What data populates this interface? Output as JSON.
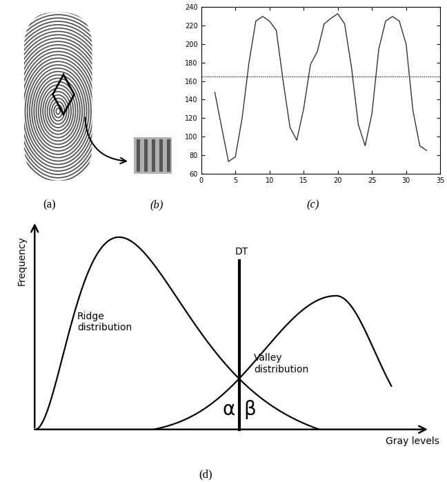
{
  "panel_labels": [
    "(a)",
    "(b)",
    "(c)",
    "(d)"
  ],
  "chart_data": {
    "type": "line",
    "color": "#333333",
    "x": [
      2,
      3,
      4,
      5,
      6,
      7,
      8,
      9,
      10,
      11,
      12,
      13,
      14,
      15,
      16,
      17,
      18,
      19,
      20,
      21,
      22,
      23,
      24,
      25,
      26,
      27,
      28,
      29,
      30,
      31,
      32,
      33
    ],
    "values": [
      148,
      110,
      73,
      78,
      120,
      180,
      225,
      230,
      225,
      215,
      160,
      110,
      96,
      130,
      178,
      192,
      222,
      228,
      233,
      222,
      175,
      113,
      90,
      125,
      195,
      225,
      230,
      225,
      200,
      128,
      90,
      85
    ],
    "threshold": 165,
    "xlim": [
      0,
      35
    ],
    "xticks": [
      0,
      5,
      10,
      15,
      20,
      25,
      30,
      35
    ],
    "ylim": [
      60,
      240
    ],
    "yticks": [
      60,
      80,
      100,
      120,
      140,
      160,
      180,
      200,
      220,
      240
    ],
    "grid": false
  },
  "diagram": {
    "y_axis_label": "Frequency",
    "x_axis_label": "Gray levels",
    "threshold_label": "DT",
    "ridge_label": "Ridge\ndistribution",
    "valley_label": "Valley\ndistribution",
    "error_labels": [
      "α",
      "β"
    ]
  }
}
